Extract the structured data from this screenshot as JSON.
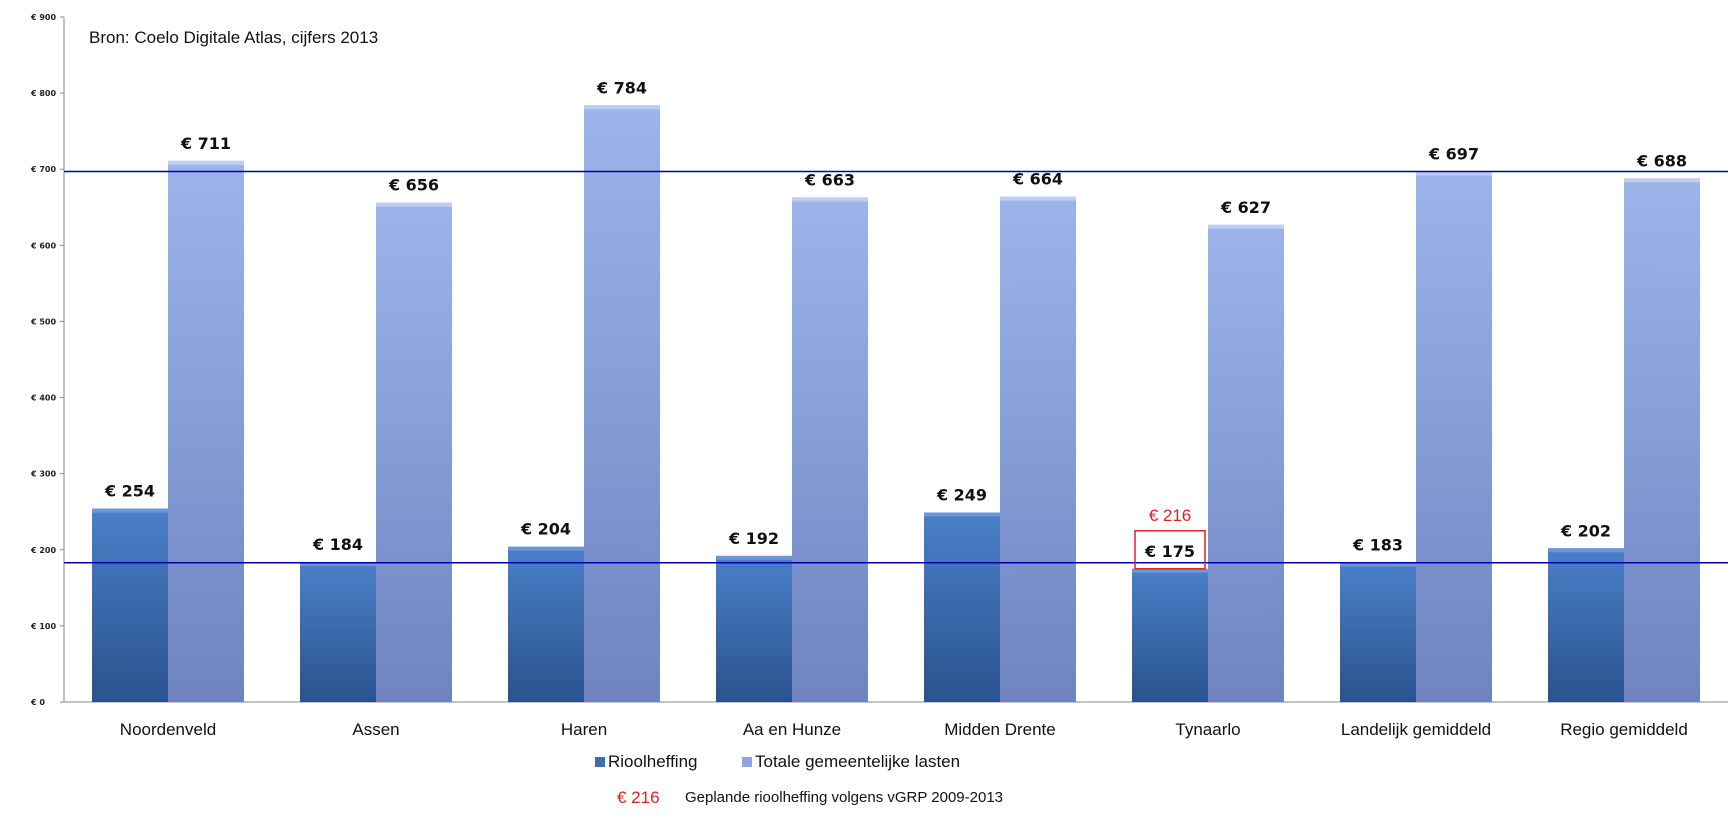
{
  "chart_data": {
    "type": "bar",
    "source_note": "Bron: Coelo Digitale Atlas, cijfers 2013",
    "categories": [
      "Noordenveld",
      "Assen",
      "Haren",
      "Aa en Hunze",
      "Midden Drente",
      "Tynaarlo",
      "Landelijk gemiddeld",
      "Regio gemiddeld"
    ],
    "series": [
      {
        "name": "Rioolheffing",
        "values": [
          254,
          184,
          204,
          192,
          249,
          175,
          183,
          202
        ],
        "color": "#3d6fb0",
        "labels": [
          "€ 254",
          "€ 184",
          "€ 204",
          "€ 192",
          "€ 249",
          "€ 175",
          "€ 183",
          "€ 202"
        ]
      },
      {
        "name": "Totale gemeentelijke lasten",
        "values": [
          711,
          656,
          784,
          663,
          664,
          627,
          697,
          688
        ],
        "color": "#8ea4dc",
        "labels": [
          "€ 711",
          "€ 656",
          "€ 784",
          "€ 663",
          "€ 664",
          "€ 627",
          "€ 697",
          "€ 688"
        ]
      }
    ],
    "ylim": [
      0,
      900
    ],
    "yticks": [
      0,
      100,
      200,
      300,
      400,
      500,
      600,
      700,
      800,
      900
    ],
    "ytick_labels": [
      "€ 0",
      "€ 100",
      "€ 200",
      "€ 300",
      "€ 400",
      "€ 500",
      "€ 600",
      "€ 700",
      "€ 800",
      "€ 900"
    ],
    "reference_lines": [
      {
        "value": 697,
        "color": "#0000b0"
      },
      {
        "value": 183,
        "color": "#0000b0"
      }
    ],
    "annotation": {
      "category": "Tynaarlo",
      "series": "Rioolheffing",
      "value": 216,
      "label": "€ 216",
      "color": "#e02020"
    },
    "legend_position": "bottom",
    "footnote": {
      "value_label": "€ 216",
      "text": "Geplande rioolheffing volgens vGRP 2009-2013"
    }
  }
}
